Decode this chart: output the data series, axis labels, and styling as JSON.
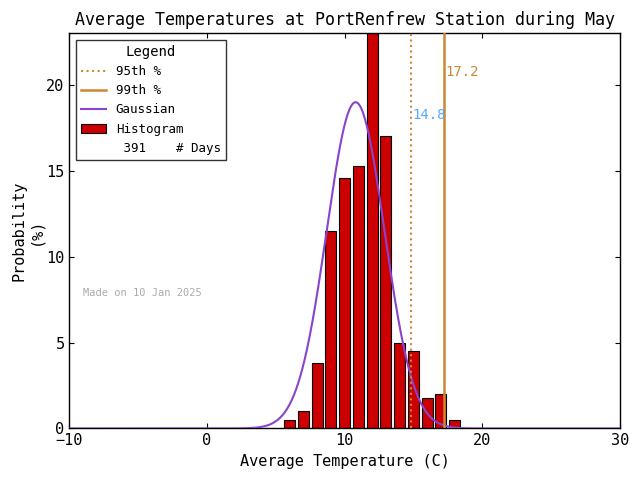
{
  "title": "Average Temperatures at PortRenfrew Station during May",
  "xlabel": "Average Temperature (C)",
  "ylabel": "Probability\n(%)",
  "xlim": [
    -10,
    30
  ],
  "ylim": [
    0,
    23
  ],
  "xticks": [
    -10,
    0,
    10,
    20,
    30
  ],
  "yticks": [
    0,
    5,
    10,
    15,
    20
  ],
  "n_days": 391,
  "made_on": "Made on 10 Jan 2025",
  "percentile_95": 14.8,
  "percentile_99": 17.2,
  "mean": 10.8,
  "std": 2.1,
  "bin_centers": [
    6,
    7,
    8,
    9,
    10,
    11,
    12,
    13,
    14,
    15,
    16,
    17,
    18
  ],
  "bin_heights": [
    0.5,
    1.0,
    3.8,
    11.5,
    14.6,
    15.3,
    23.0,
    17.0,
    5.0,
    4.5,
    1.8,
    2.0,
    0.5
  ],
  "bar_width": 0.8,
  "hist_color": "#cc0000",
  "hist_edgecolor": "#000000",
  "gaussian_color": "#8844cc",
  "line_95_color": "#cc8833",
  "line_99_color": "#cc8833",
  "label_95_color": "#55aaff",
  "label_99_color": "#cc8833",
  "background_color": "#ffffff",
  "legend_title": "Legend",
  "watermark_color": "#aaaaaa",
  "title_fontsize": 12,
  "axis_fontsize": 11,
  "tick_fontsize": 11
}
